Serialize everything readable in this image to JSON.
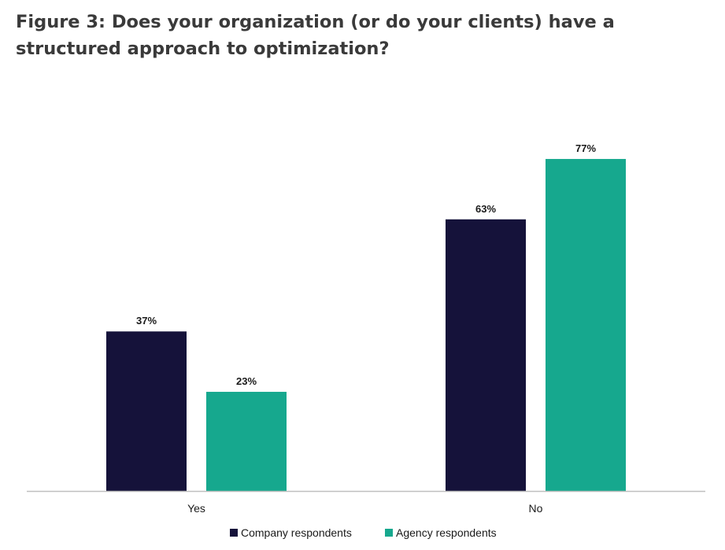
{
  "page": {
    "title": "Figure 3: Does your organization (or do your clients) have a structured approach to optimization?"
  },
  "chart_data": {
    "type": "bar",
    "title": "Figure 3: Does your organization (or do your clients) have a structured approach to optimization?",
    "categories": [
      "Yes",
      "No"
    ],
    "series": [
      {
        "name": "Company respondents",
        "values": [
          37,
          63
        ],
        "labels": [
          "37%",
          "63%"
        ],
        "color": "#15123a"
      },
      {
        "name": "Agency respondents",
        "values": [
          23,
          77
        ],
        "labels": [
          "23%",
          "77%"
        ],
        "color": "#16a88e"
      }
    ],
    "xlabel": "",
    "ylabel": "",
    "ylim": [
      0,
      100
    ],
    "unit": "%",
    "grid": false,
    "legend": "bottom-center"
  },
  "colors": {
    "axis": "#bfbfbf",
    "title": "#3a3a3a"
  }
}
